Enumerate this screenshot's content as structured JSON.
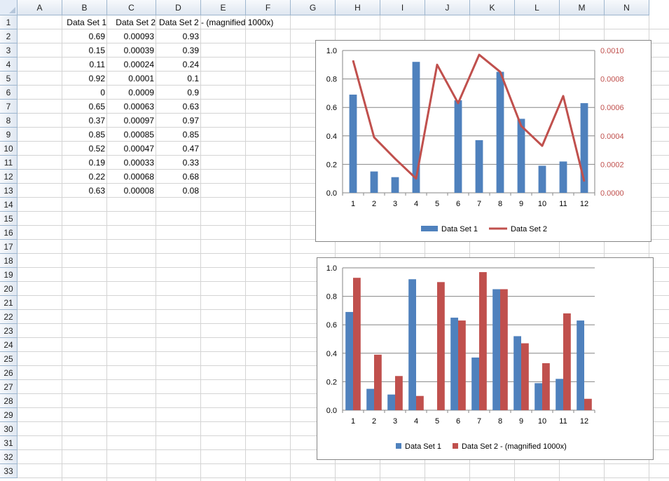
{
  "sheet": {
    "columns": [
      "A",
      "B",
      "C",
      "D",
      "E",
      "F",
      "G",
      "H",
      "I",
      "J",
      "K",
      "L",
      "M",
      "N"
    ],
    "rows": [
      "1",
      "2",
      "3",
      "4",
      "5",
      "6",
      "7",
      "8",
      "9",
      "10",
      "11",
      "12",
      "13",
      "14",
      "15",
      "16",
      "17",
      "18",
      "19",
      "20",
      "21",
      "22",
      "23",
      "24",
      "25",
      "26",
      "27",
      "28",
      "29",
      "30",
      "31",
      "32",
      "33"
    ],
    "headers": {
      "b": "Data Set 1",
      "c": "Data Set 2",
      "d": "Data Set 2 - (magnified 1000x)"
    },
    "data": [
      {
        "b": "0.69",
        "c": "0.00093",
        "d": "0.93"
      },
      {
        "b": "0.15",
        "c": "0.00039",
        "d": "0.39"
      },
      {
        "b": "0.11",
        "c": "0.00024",
        "d": "0.24"
      },
      {
        "b": "0.92",
        "c": "0.0001",
        "d": "0.1"
      },
      {
        "b": "0",
        "c": "0.0009",
        "d": "0.9"
      },
      {
        "b": "0.65",
        "c": "0.00063",
        "d": "0.63"
      },
      {
        "b": "0.37",
        "c": "0.00097",
        "d": "0.97"
      },
      {
        "b": "0.85",
        "c": "0.00085",
        "d": "0.85"
      },
      {
        "b": "0.52",
        "c": "0.00047",
        "d": "0.47"
      },
      {
        "b": "0.19",
        "c": "0.00033",
        "d": "0.33"
      },
      {
        "b": "0.22",
        "c": "0.00068",
        "d": "0.68"
      },
      {
        "b": "0.63",
        "c": "0.00008",
        "d": "0.08"
      }
    ]
  },
  "chart_data": [
    {
      "type": "bar+line",
      "categories": [
        "1",
        "2",
        "3",
        "4",
        "5",
        "6",
        "7",
        "8",
        "9",
        "10",
        "11",
        "12"
      ],
      "series": [
        {
          "name": "Data Set 1",
          "type": "bar",
          "axis": "primary",
          "color": "#4f81bd",
          "values": [
            0.69,
            0.15,
            0.11,
            0.92,
            0,
            0.65,
            0.37,
            0.85,
            0.52,
            0.19,
            0.22,
            0.63
          ]
        },
        {
          "name": "Data Set 2",
          "type": "line",
          "axis": "secondary",
          "color": "#c0504d",
          "values": [
            0.00093,
            0.00039,
            0.00024,
            0.0001,
            0.0009,
            0.00063,
            0.00097,
            0.00085,
            0.00047,
            0.00033,
            0.00068,
            8e-05
          ]
        }
      ],
      "y_primary": {
        "min": 0,
        "max": 1,
        "ticks": [
          "0.0",
          "0.2",
          "0.4",
          "0.6",
          "0.8",
          "1.0"
        ]
      },
      "y_secondary": {
        "min": 0,
        "max": 0.001,
        "ticks": [
          "0.0000",
          "0.0002",
          "0.0004",
          "0.0006",
          "0.0008",
          "0.0010"
        ]
      },
      "grid": true,
      "legend": "bottom"
    },
    {
      "type": "bar",
      "categories": [
        "1",
        "2",
        "3",
        "4",
        "5",
        "6",
        "7",
        "8",
        "9",
        "10",
        "11",
        "12"
      ],
      "series": [
        {
          "name": "Data Set 1",
          "color": "#4f81bd",
          "values": [
            0.69,
            0.15,
            0.11,
            0.92,
            0,
            0.65,
            0.37,
            0.85,
            0.52,
            0.19,
            0.22,
            0.63
          ]
        },
        {
          "name": "Data Set 2 - (magnified 1000x)",
          "color": "#c0504d",
          "values": [
            0.93,
            0.39,
            0.24,
            0.1,
            0.9,
            0.63,
            0.97,
            0.85,
            0.47,
            0.33,
            0.68,
            0.08
          ]
        }
      ],
      "y_primary": {
        "min": 0,
        "max": 1,
        "ticks": [
          "0.0",
          "0.2",
          "0.4",
          "0.6",
          "0.8",
          "1.0"
        ]
      },
      "grid": true,
      "legend": "bottom"
    }
  ]
}
